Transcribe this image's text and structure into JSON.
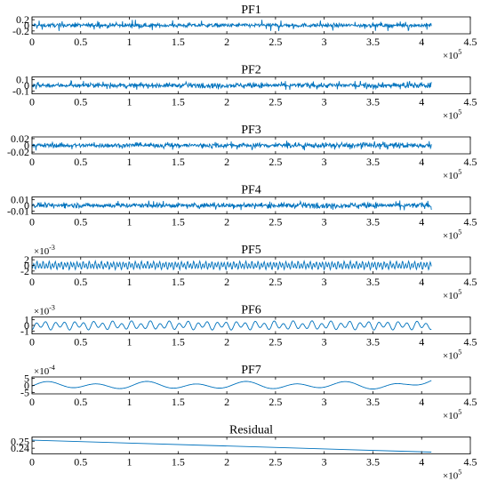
{
  "figure": {
    "x_tick_labels": [
      "0",
      "0.5",
      "1",
      "1.5",
      "2",
      "2.5",
      "3",
      "3.5",
      "4",
      "4.5"
    ],
    "x_multiplier": {
      "base": "×10",
      "exp": "5"
    },
    "line_color": "#0072BD"
  },
  "chart_data": [
    {
      "type": "line",
      "title": "PF1",
      "ylim": [
        -0.3,
        0.3
      ],
      "yticks": [
        0.2,
        0,
        -0.2
      ],
      "ytick_labels": [
        "0.2",
        "0",
        "-0.2"
      ],
      "y_multiplier": null,
      "xlim": [
        0,
        450000
      ],
      "x_end": 410000,
      "signal": "noise",
      "noise_amp": 0.08,
      "spikes": 0.2,
      "grow": 0
    },
    {
      "type": "line",
      "title": "PF2",
      "ylim": [
        -0.15,
        0.15
      ],
      "yticks": [
        0.1,
        0,
        -0.1
      ],
      "ytick_labels": [
        "0.1",
        "0",
        "-0.1"
      ],
      "y_multiplier": null,
      "xlim": [
        0,
        450000
      ],
      "x_end": 410000,
      "signal": "noise",
      "noise_amp": 0.04,
      "spikes": 0.08,
      "grow": 0.35
    },
    {
      "type": "line",
      "title": "PF3",
      "ylim": [
        -0.025,
        0.025
      ],
      "yticks": [
        0.02,
        0,
        -0.02
      ],
      "ytick_labels": [
        "0.02",
        "0",
        "-0.02"
      ],
      "y_multiplier": null,
      "xlim": [
        0,
        450000
      ],
      "x_end": 410000,
      "signal": "noise",
      "noise_amp": 0.007,
      "spikes": 0.015,
      "grow": 0.3
    },
    {
      "type": "line",
      "title": "PF4",
      "ylim": [
        -0.015,
        0.015
      ],
      "yticks": [
        0.01,
        0,
        -0.01
      ],
      "ytick_labels": [
        "0.01",
        "0",
        "-0.01"
      ],
      "y_multiplier": null,
      "xlim": [
        0,
        450000
      ],
      "x_end": 410000,
      "signal": "noise",
      "noise_amp": 0.0045,
      "spikes": 0.009,
      "grow": 0.2
    },
    {
      "type": "line",
      "title": "PF5",
      "ylim": [
        -3,
        3
      ],
      "yticks": [
        2,
        0,
        -2
      ],
      "ytick_labels": [
        "2",
        "0",
        "-2"
      ],
      "y_multiplier": {
        "base": "×10",
        "exp": "-3"
      },
      "xlim": [
        0,
        450000
      ],
      "x_end": 410000,
      "signal": "oscillation",
      "freq": 130,
      "amp": 1.4
    },
    {
      "type": "line",
      "title": "PF6",
      "ylim": [
        -1.5,
        1.5
      ],
      "yticks": [
        1,
        0,
        -1
      ],
      "ytick_labels": [
        "1",
        "0",
        "-1"
      ],
      "y_multiplier": {
        "base": "×10",
        "exp": "-3"
      },
      "xlim": [
        0,
        450000
      ],
      "x_end": 410000,
      "signal": "oscillation",
      "freq": 42,
      "amp": 0.75
    },
    {
      "type": "line",
      "title": "PF7",
      "ylim": [
        -6,
        6
      ],
      "yticks": [
        5,
        0,
        -5
      ],
      "ytick_labels": [
        "5",
        "0",
        "-5"
      ],
      "y_multiplier": {
        "base": "×10",
        "exp": "-4"
      },
      "xlim": [
        0,
        450000
      ],
      "x_end": 410000,
      "signal": "oscillation",
      "freq": 8,
      "amp": 2.6
    },
    {
      "type": "line",
      "title": "Residual",
      "ylim": [
        0.232,
        0.256
      ],
      "yticks": [
        0.25,
        0.24
      ],
      "ytick_labels": [
        "0.25",
        "0.24"
      ],
      "y_multiplier": null,
      "xlim": [
        0,
        450000
      ],
      "x_end": 410000,
      "signal": "linear",
      "x": [
        0,
        410000
      ],
      "y": [
        0.2515,
        0.2345
      ]
    }
  ]
}
